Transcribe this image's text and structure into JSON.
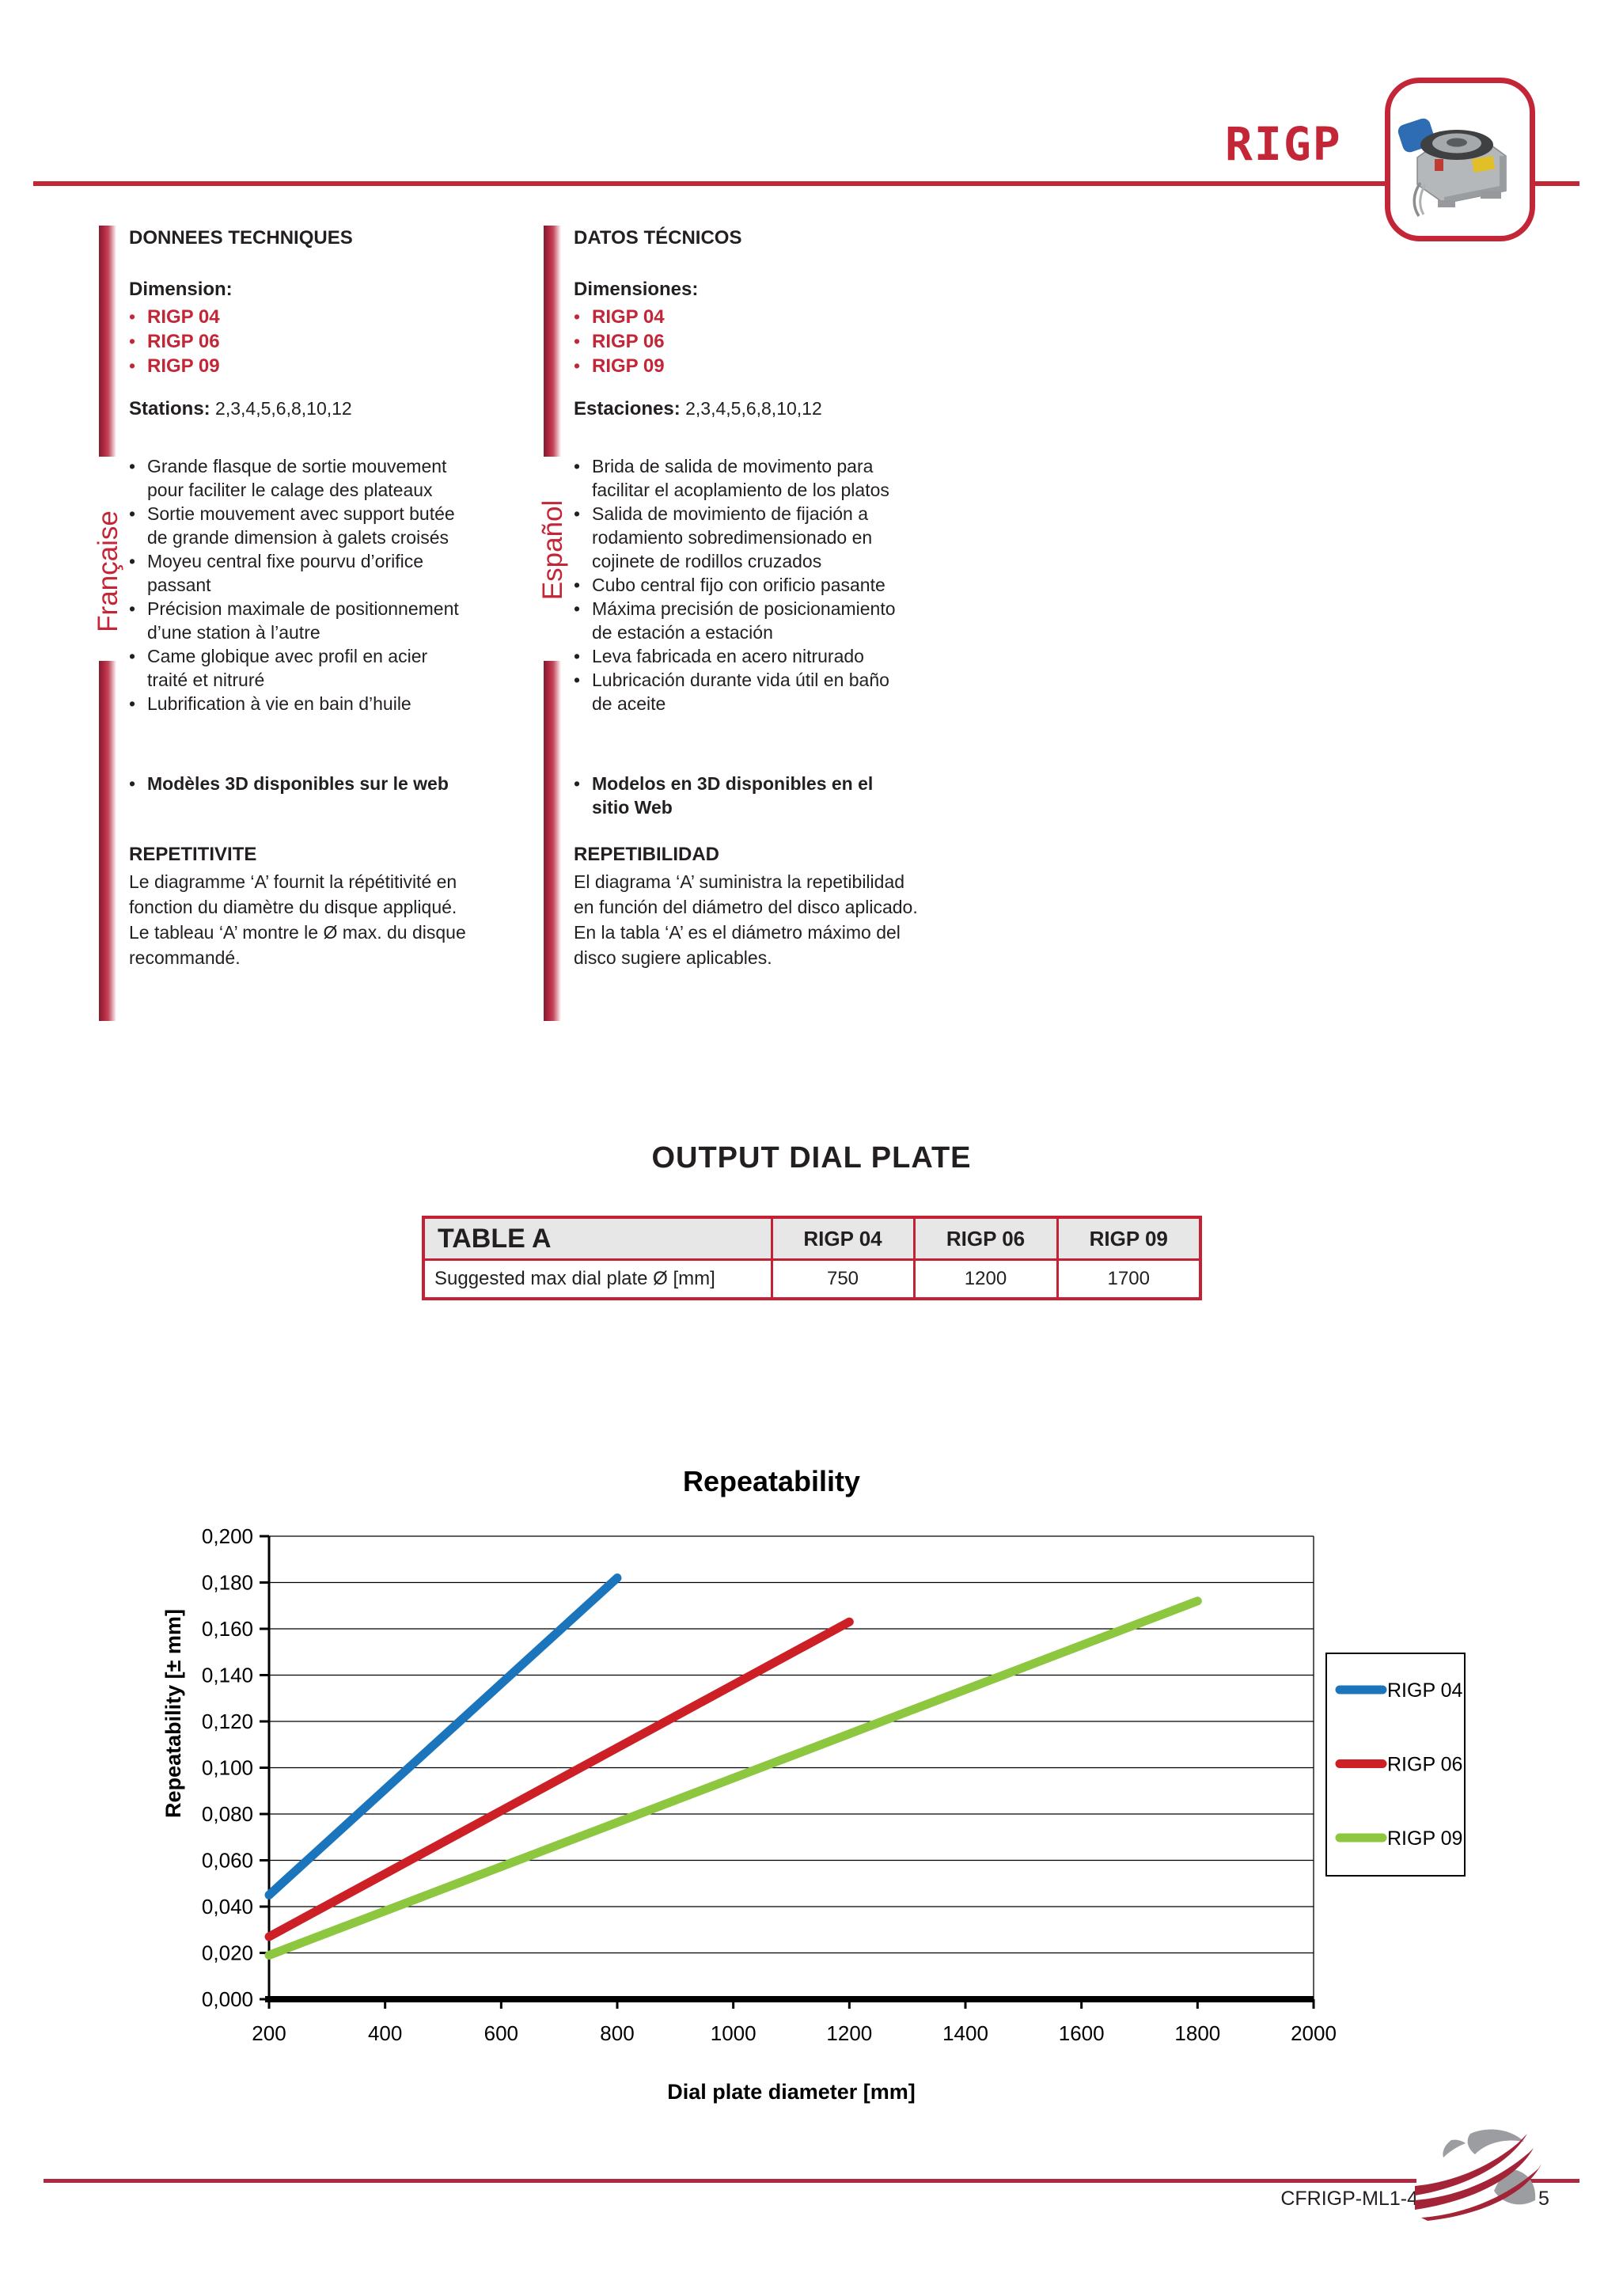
{
  "header": {
    "title": "RIGP"
  },
  "colors": {
    "accent_red": "#C32737",
    "footer_rule_red": "#AD2A40",
    "table_border_red": "#C42134",
    "table_header_bg": "#E7E7E8"
  },
  "french": {
    "side_label": "Française",
    "heading": "DONNEES TECHNIQUES",
    "dimension_label": "Dimension:",
    "models": [
      "RIGP 04",
      "RIGP 06",
      "RIGP 09"
    ],
    "stations_label": "Stations:",
    "stations_values": " 2,3,4,5,6,8,10,12",
    "features": [
      "Grande flasque de sortie mouvement pour faciliter le calage des plateaux",
      "Sortie mouvement avec support butée de grande dimension à galets croisés",
      "Moyeu central fixe pourvu d’orifice passant",
      "Précision maximale de positionnement d’une station à l’autre",
      "Came globique avec profil en acier traité et nitruré",
      "Lubrification à vie en bain d’huile"
    ],
    "web_note": "Modèles 3D disponibles sur le web",
    "section_heading": "REPETITIVITE",
    "section_text": "Le diagramme ‘A’ fournit la répétitivité en fonction du diamètre du disque appliqué. Le tableau ‘A’ montre le Ø max. du disque recommandé."
  },
  "spanish": {
    "side_label": "Español",
    "heading": "DATOS TÉCNICOS",
    "dimension_label": "Dimensiones:",
    "models": [
      "RIGP 04",
      "RIGP 06",
      "RIGP 09"
    ],
    "stations_label": "Estaciones:",
    "stations_values": " 2,3,4,5,6,8,10,12",
    "features": [
      "Brida de salida de movimento para facilitar el acoplamiento de los platos",
      "Salida de movimiento de fijación a rodamiento sobredimensionado en cojinete de rodillos cruzados",
      "Cubo central fijo con orificio pasante",
      "Máxima precisión de posicionamiento de estación a estación",
      "Leva fabricada en acero nitrurado",
      "Lubricación durante vida útil en baño de aceite"
    ],
    "web_note": "Modelos en 3D disponibles en el sitio Web",
    "section_heading": "REPETIBILIDAD",
    "section_text": "El diagrama ‘A’ suministra la repetibilidad en función del diámetro del disco aplicado. En la tabla ‘A’ es el diámetro máximo del disco sugiere aplicables."
  },
  "output_dial_plate": {
    "heading": "OUTPUT DIAL PLATE",
    "table": {
      "title": "TABLE A",
      "columns": [
        "RIGP 04",
        "RIGP 06",
        "RIGP 09"
      ],
      "row_label": "Suggested max dial plate Ø [mm]",
      "values": [
        "750",
        "1200",
        "1700"
      ]
    }
  },
  "chart_data": {
    "type": "line",
    "title": "Repeatability",
    "xlabel": "Dial plate diameter [mm]",
    "ylabel": "Repeatability [± mm]",
    "xlim": [
      200,
      2000
    ],
    "ylim": [
      0,
      0.2
    ],
    "x_ticks": [
      200,
      400,
      600,
      800,
      1000,
      1200,
      1400,
      1600,
      1800,
      2000
    ],
    "y_ticks": [
      0,
      0.02,
      0.04,
      0.06,
      0.08,
      0.1,
      0.12,
      0.14,
      0.16,
      0.18,
      0.2
    ],
    "y_tick_labels": [
      "0,000",
      "0,020",
      "0,040",
      "0,060",
      "0,080",
      "0,100",
      "0,120",
      "0,140",
      "0,160",
      "0,180",
      "0,200"
    ],
    "grid": "horizontal",
    "legend_position": "right",
    "series": [
      {
        "name": "RIGP 04",
        "color": "#1B75BC",
        "points": [
          [
            200,
            0.045
          ],
          [
            800,
            0.182
          ]
        ]
      },
      {
        "name": "RIGP 06",
        "color": "#CC2026",
        "points": [
          [
            200,
            0.027
          ],
          [
            1200,
            0.163
          ]
        ]
      },
      {
        "name": "RIGP 09",
        "color": "#8DC63F",
        "points": [
          [
            200,
            0.019
          ],
          [
            1800,
            0.172
          ]
        ]
      }
    ]
  },
  "footer": {
    "doc_code": "CFRIGP-ML1-4",
    "page_number": "5"
  }
}
